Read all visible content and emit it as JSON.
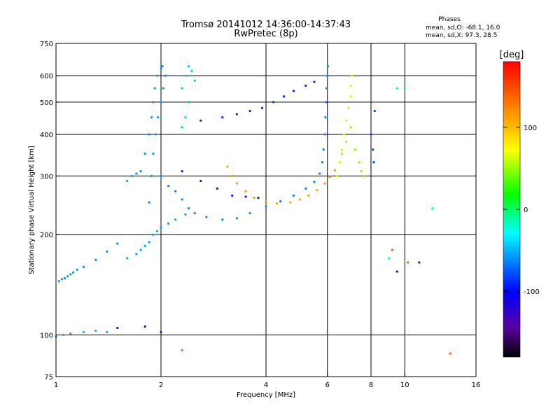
{
  "chart_data": {
    "type": "scatter",
    "title": "Tromsø 20141012 14:36:00-14:37:43",
    "subtitle": "RwPretec (8p)",
    "xlabel": "Frequency [MHz]",
    "ylabel": "Stationary phase Virtual Height [km]",
    "x_scale": "log",
    "y_scale": "log",
    "xlim": [
      1,
      16
    ],
    "ylim": [
      75,
      750
    ],
    "x_ticks": [
      {
        "value": 1,
        "label": "1"
      },
      {
        "value": 2,
        "label": "2"
      },
      {
        "value": 4,
        "label": "4"
      },
      {
        "value": 6,
        "label": "6"
      },
      {
        "value": 8,
        "label": "8"
      },
      {
        "value": 10,
        "label": "10"
      },
      {
        "value": 16,
        "label": "16"
      }
    ],
    "x_gridlines": [
      2,
      4,
      6,
      8,
      10
    ],
    "y_ticks": [
      {
        "value": 75,
        "label": "75"
      },
      {
        "value": 100,
        "label": "100"
      },
      {
        "value": 200,
        "label": "200"
      },
      {
        "value": 300,
        "label": "300"
      },
      {
        "value": 400,
        "label": "400"
      },
      {
        "value": 500,
        "label": "500"
      },
      {
        "value": 600,
        "label": "600"
      },
      {
        "value": 750,
        "label": "750"
      }
    ],
    "y_gridlines": [
      100,
      200,
      300,
      400,
      500,
      600
    ],
    "grid": true,
    "phase_stats": {
      "heading": "Phases",
      "line_o": "mean, sd,O: -68.1, 16.0",
      "line_x": "mean, sd,X:  97.3, 28.5"
    },
    "colorbar": {
      "label": "[deg]",
      "range": [
        -180,
        180
      ],
      "ticks": [
        {
          "value": 100,
          "label": "100"
        },
        {
          "value": 0,
          "label": "0"
        },
        {
          "value": -100,
          "label": "-100"
        }
      ],
      "colors": [
        "#ff0000",
        "#ff7f00",
        "#ffff00",
        "#00ff00",
        "#00ffff",
        "#0000ff",
        "#5a00a0",
        "#000000"
      ]
    },
    "series": [
      {
        "phase_deg": -60,
        "points": [
          [
            1.02,
            145
          ],
          [
            1.04,
            147
          ],
          [
            1.06,
            148
          ],
          [
            1.08,
            150
          ],
          [
            1.1,
            152
          ],
          [
            1.12,
            154
          ],
          [
            1.15,
            157
          ],
          [
            1.2,
            160
          ],
          [
            1.3,
            168
          ],
          [
            1.4,
            178
          ],
          [
            1.5,
            188
          ]
        ]
      },
      {
        "phase_deg": -50,
        "points": [
          [
            1.0,
            99
          ],
          [
            1.05,
            100
          ],
          [
            1.1,
            101
          ],
          [
            1.2,
            102
          ],
          [
            1.3,
            103
          ],
          [
            1.4,
            102
          ]
        ]
      },
      {
        "phase_deg": -55,
        "points": [
          [
            1.6,
            170
          ],
          [
            1.7,
            175
          ],
          [
            1.75,
            180
          ],
          [
            1.8,
            185
          ],
          [
            1.85,
            190
          ],
          [
            1.9,
            200
          ],
          [
            1.95,
            205
          ],
          [
            2.0,
            210
          ],
          [
            2.1,
            216
          ],
          [
            2.2,
            222
          ],
          [
            2.35,
            230
          ]
        ]
      },
      {
        "phase_deg": -60,
        "points": [
          [
            1.6,
            290
          ],
          [
            1.65,
            300
          ],
          [
            1.7,
            305
          ],
          [
            1.75,
            310
          ],
          [
            1.8,
            350
          ],
          [
            1.85,
            400
          ],
          [
            1.88,
            450
          ],
          [
            1.9,
            500
          ],
          [
            1.92,
            550
          ],
          [
            1.95,
            600
          ],
          [
            2.0,
            630
          ],
          [
            2.02,
            640
          ]
        ]
      },
      {
        "phase_deg": -60,
        "points": [
          [
            1.85,
            250
          ],
          [
            1.88,
            300
          ],
          [
            1.9,
            350
          ],
          [
            1.93,
            400
          ],
          [
            1.96,
            450
          ],
          [
            2.0,
            500
          ],
          [
            2.03,
            550
          ],
          [
            2.06,
            600
          ]
        ]
      },
      {
        "phase_deg": -45,
        "points": [
          [
            2.3,
            550
          ],
          [
            2.35,
            600
          ],
          [
            2.4,
            640
          ],
          [
            2.45,
            620
          ],
          [
            2.5,
            580
          ],
          [
            2.4,
            500
          ],
          [
            2.35,
            450
          ],
          [
            2.3,
            420
          ]
        ]
      },
      {
        "phase_deg": -65,
        "points": [
          [
            2.0,
            300
          ],
          [
            2.1,
            280
          ],
          [
            2.2,
            270
          ],
          [
            2.3,
            255
          ],
          [
            2.4,
            240
          ],
          [
            2.5,
            232
          ],
          [
            2.7,
            226
          ],
          [
            3.0,
            222
          ],
          [
            3.3,
            224
          ],
          [
            3.6,
            232
          ],
          [
            4.0,
            243
          ],
          [
            4.4,
            252
          ],
          [
            4.8,
            262
          ],
          [
            5.2,
            275
          ],
          [
            5.5,
            288
          ],
          [
            5.7,
            305
          ],
          [
            5.8,
            330
          ],
          [
            5.85,
            360
          ],
          [
            5.9,
            400
          ],
          [
            5.92,
            450
          ],
          [
            5.95,
            500
          ],
          [
            5.97,
            550
          ],
          [
            6.0,
            600
          ],
          [
            6.02,
            640
          ]
        ]
      },
      {
        "phase_deg": -90,
        "points": [
          [
            2.6,
            440
          ],
          [
            3.0,
            450
          ],
          [
            3.3,
            460
          ],
          [
            3.6,
            470
          ],
          [
            3.9,
            480
          ],
          [
            4.2,
            500
          ],
          [
            4.5,
            520
          ],
          [
            4.8,
            540
          ],
          [
            5.2,
            560
          ],
          [
            5.5,
            575
          ]
        ]
      },
      {
        "phase_deg": -95,
        "points": [
          [
            2.3,
            310
          ],
          [
            2.6,
            290
          ],
          [
            2.9,
            275
          ],
          [
            3.2,
            262
          ],
          [
            3.5,
            260
          ],
          [
            3.8,
            258
          ]
        ]
      },
      {
        "phase_deg": 115,
        "points": [
          [
            3.1,
            320
          ],
          [
            3.2,
            300
          ],
          [
            3.3,
            285
          ],
          [
            3.5,
            270
          ],
          [
            3.7,
            258
          ],
          [
            4.0,
            250
          ],
          [
            4.3,
            248
          ],
          [
            4.7,
            250
          ],
          [
            5.0,
            255
          ],
          [
            5.3,
            262
          ],
          [
            5.6,
            272
          ],
          [
            5.9,
            285
          ],
          [
            6.1,
            298
          ],
          [
            6.3,
            312
          ]
        ]
      },
      {
        "phase_deg": 60,
        "points": [
          [
            6.4,
            300
          ],
          [
            6.5,
            330
          ],
          [
            6.6,
            360
          ],
          [
            6.7,
            400
          ],
          [
            6.8,
            440
          ],
          [
            6.9,
            480
          ],
          [
            7.0,
            520
          ],
          [
            7.0,
            560
          ],
          [
            7.05,
            600
          ]
        ]
      },
      {
        "phase_deg": 45,
        "points": [
          [
            6.6,
            350
          ],
          [
            6.8,
            380
          ],
          [
            7.0,
            420
          ],
          [
            7.2,
            360
          ],
          [
            7.4,
            330
          ],
          [
            7.5,
            310
          ],
          [
            7.6,
            300
          ]
        ]
      },
      {
        "phase_deg": -80,
        "points": [
          [
            8.0,
            400
          ],
          [
            8.1,
            360
          ],
          [
            8.15,
            330
          ],
          [
            8.2,
            470
          ]
        ]
      },
      {
        "phase_deg": 140,
        "points": [
          [
            9.2,
            180
          ],
          [
            10.2,
            165
          ],
          [
            13.5,
            88
          ],
          [
            2.3,
            90
          ]
        ]
      },
      {
        "phase_deg": -120,
        "points": [
          [
            9.5,
            155
          ],
          [
            11.0,
            165
          ],
          [
            2.0,
            102
          ],
          [
            1.8,
            106
          ],
          [
            1.5,
            105
          ]
        ]
      },
      {
        "phase_deg": -20,
        "points": [
          [
            9.0,
            170
          ],
          [
            12.0,
            240
          ],
          [
            9.5,
            550
          ],
          [
            10.0,
            550
          ]
        ]
      }
    ]
  }
}
